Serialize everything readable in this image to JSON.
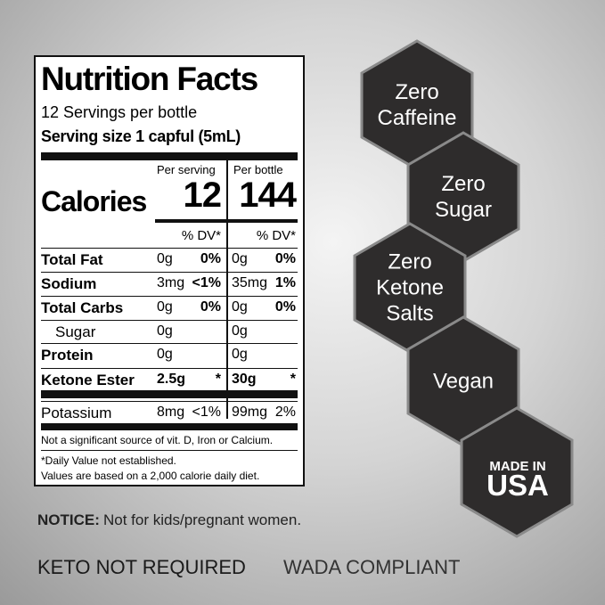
{
  "label": {
    "title": "Nutrition Facts",
    "servings": "12 Servings per bottle",
    "serving_size": "Serving size 1 capful (5mL)",
    "calories_label": "Calories",
    "columns": [
      "Per serving",
      "Per bottle"
    ],
    "calories": [
      12,
      144
    ],
    "dv_header": [
      "% DV*",
      "% DV*"
    ],
    "rows": [
      {
        "name": "Total Fat",
        "serving": "0g",
        "serving_dv": "0%",
        "bottle": "0g",
        "bottle_dv": "0%"
      },
      {
        "name": "Sodium",
        "serving": "3mg",
        "serving_dv": "<1%",
        "bottle": "35mg",
        "bottle_dv": "1%"
      },
      {
        "name": "Total Carbs",
        "serving": "0g",
        "serving_dv": "0%",
        "bottle": "0g",
        "bottle_dv": "0%"
      },
      {
        "name": "Sugar",
        "serving": "0g",
        "bottle": "0g"
      },
      {
        "name": "Protein",
        "serving": "0g",
        "bottle": "0g"
      },
      {
        "name": "Ketone Ester",
        "serving": "2.5g",
        "serving_dv": "*",
        "bottle": "30g",
        "bottle_dv": "*"
      },
      {
        "name": "Potassium",
        "serving": "8mg",
        "serving_dv": "<1%",
        "bottle": "99mg",
        "bottle_dv": "2%"
      }
    ],
    "footnotes": [
      "Not a significant source of vit. D, Iron or Calcium.",
      "*Daily Value not established.",
      "Values are based on a 2,000 calorie daily diet."
    ]
  },
  "badges": [
    "Zero Caffeine",
    "Zero Sugar",
    "Zero Ketone Salts",
    "Vegan"
  ],
  "made_in": {
    "top": "MADE IN",
    "country": "USA"
  },
  "notice": {
    "label": "NOTICE:",
    "text": "Not for kids/pregnant women."
  },
  "footer": [
    "KETO NOT REQUIRED",
    "WADA COMPLIANT"
  ]
}
